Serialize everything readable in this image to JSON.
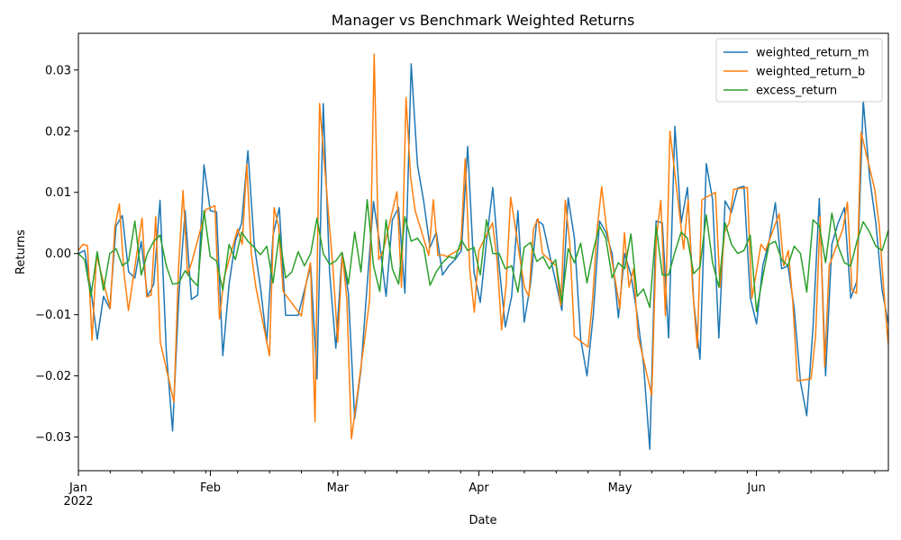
{
  "chart_data": {
    "type": "line",
    "title": "Manager vs Benchmark Weighted Returns",
    "xlabel": "Date",
    "ylabel": "Returns",
    "x_start": "2022-01-03",
    "x_end": "2022-06-30",
    "x_frequency": "business-day",
    "ylim": [
      -0.0355,
      0.036
    ],
    "yticks": [
      -0.03,
      -0.02,
      -0.01,
      0.0,
      0.01,
      0.02,
      0.03
    ],
    "ytick_labels": [
      "−0.03",
      "−0.02",
      "−0.01",
      "0.00",
      "0.01",
      "0.02",
      "0.03"
    ],
    "xticks": [
      {
        "date": "2022-01-03",
        "label": "Jan",
        "sublabel": "2022"
      },
      {
        "date": "2022-02-01",
        "label": "Feb",
        "sublabel": ""
      },
      {
        "date": "2022-03-01",
        "label": "Mar",
        "sublabel": ""
      },
      {
        "date": "2022-04-01",
        "label": "Apr",
        "sublabel": ""
      },
      {
        "date": "2022-05-02",
        "label": "May",
        "sublabel": ""
      },
      {
        "date": "2022-06-01",
        "label": "Jun",
        "sublabel": ""
      }
    ],
    "grid": false,
    "legend_position": "top-right",
    "series": [
      {
        "name": "weighted_return_m",
        "color": "#1f77b4",
        "values": [
          0.0,
          0.0005,
          -0.006,
          -0.014,
          -0.007,
          -0.009,
          0.0045,
          0.0062,
          -0.003,
          -0.004,
          0.002,
          -0.007,
          -0.005,
          0.0087,
          -0.016,
          -0.029,
          -0.007,
          0.007,
          -0.0075,
          -0.0068,
          0.0145,
          0.007,
          0.0068,
          -0.0167,
          -0.005,
          0.002,
          0.005,
          0.0168,
          0.0015,
          -0.0055,
          -0.0145,
          0.003,
          0.0075,
          -0.0101,
          -0.0101,
          -0.0101,
          -0.006,
          -0.002,
          -0.0205,
          0.0245,
          -0.003,
          -0.0155,
          0.0,
          -0.0065,
          -0.027,
          -0.019,
          -0.005,
          0.0085,
          0.0015,
          -0.007,
          0.0055,
          0.0075,
          -0.0065,
          0.031,
          0.0145,
          0.0085,
          0.001,
          0.0035,
          -0.0035,
          -0.002,
          -0.001,
          0.0005,
          0.0175,
          -0.003,
          -0.008,
          0.002,
          0.0108,
          -0.002,
          -0.012,
          -0.007,
          0.007,
          -0.0112,
          -0.005,
          0.0055,
          0.0047,
          0.0,
          -0.0045,
          -0.0093,
          0.0091,
          0.0025,
          -0.014,
          -0.02,
          -0.01,
          0.0053,
          0.0035,
          0.0,
          -0.0105,
          0.0,
          -0.0035,
          -0.01,
          -0.018,
          -0.032,
          0.0053,
          0.005,
          -0.0138,
          0.0208,
          0.005,
          0.0108,
          -0.008,
          -0.0173,
          0.0147,
          0.0088,
          -0.0138,
          0.0086,
          0.0067,
          0.0107,
          0.011,
          -0.0072,
          -0.0115,
          -0.002,
          0.002,
          0.0083,
          -0.0025,
          -0.002,
          -0.009,
          -0.021,
          -0.0265,
          -0.012,
          0.009,
          -0.02,
          0.0015,
          0.005,
          0.0075,
          -0.0073,
          -0.0045,
          0.025,
          0.0125,
          0.005,
          -0.006,
          -0.0115
        ]
      },
      {
        "name": "weighted_return_b",
        "color": "#ff7f0e",
        "values": [
          0.0005,
          0.0015,
          0.0013,
          -0.0142,
          -0.0003,
          -0.009,
          0.0042,
          0.0081,
          -0.003,
          -0.0093,
          0.0058,
          -0.0071,
          -0.0068,
          0.006,
          -0.0145,
          -0.0243,
          -0.0025,
          0.0103,
          -0.0035,
          -0.0012,
          0.0072,
          0.0075,
          0.0078,
          -0.0107,
          -0.004,
          0.004,
          0.0015,
          0.0146,
          0.0,
          -0.0055,
          -0.0167,
          0.0075,
          0.0045,
          -0.0062,
          -0.0072,
          -0.0102,
          -0.005,
          -0.0015,
          -0.0275,
          0.0245,
          -0.003,
          -0.0145,
          0.0,
          -0.0075,
          -0.0303,
          -0.0135,
          -0.0075,
          0.0326,
          -0.001,
          0.0005,
          0.0101,
          -0.0055,
          0.0255,
          0.0125,
          0.007,
          -0.0003,
          0.0088,
          -0.0003,
          -0.0002,
          -0.0005,
          0.0008,
          0.0155,
          -0.0025,
          -0.0096,
          0.0005,
          0.005,
          -0.001,
          -0.0125,
          -0.005,
          0.0092,
          -0.0055,
          -0.007,
          0.004,
          0.0057,
          0.0,
          -0.002,
          -0.0085,
          0.0087,
          0.0015,
          -0.0135,
          -0.0153,
          -0.0075,
          0.004,
          0.0109,
          0.0045,
          -0.009,
          0.0034,
          -0.0055,
          -0.0025,
          -0.0135,
          -0.0232,
          0.0025,
          0.0087,
          -0.0102,
          0.02,
          0.0007,
          0.0088,
          -0.006,
          -0.0155,
          0.0088,
          0.01,
          -0.0055,
          0.0035,
          0.005,
          0.0105,
          0.0108,
          -0.0073,
          -0.003,
          0.0015,
          0.0005,
          0.0065,
          -0.002,
          0.0005,
          -0.008,
          -0.0208,
          -0.0205,
          -0.0135,
          0.006,
          -0.0185,
          -0.002,
          0.004,
          0.0084,
          -0.006,
          -0.0065,
          0.0198,
          0.0105,
          0.0045,
          -0.0062,
          -0.015
        ]
      },
      {
        "name": "excess_return",
        "color": "#2ca02c",
        "values": [
          0.0,
          -0.001,
          -0.007,
          0.0003,
          -0.006,
          0.0,
          0.0008,
          -0.002,
          -0.0012,
          0.0053,
          -0.0035,
          0.0,
          0.002,
          0.003,
          -0.002,
          -0.005,
          -0.0048,
          -0.0028,
          -0.0042,
          -0.0053,
          0.007,
          -0.0005,
          -0.0012,
          -0.006,
          0.0015,
          -0.001,
          0.0035,
          0.002,
          0.001,
          -0.0002,
          0.0012,
          -0.0048,
          0.0032,
          -0.004,
          -0.003,
          0.0003,
          -0.002,
          0.0,
          0.0058,
          0.0,
          -0.0018,
          -0.0012,
          0.0002,
          -0.005,
          0.0035,
          -0.003,
          0.0088,
          -0.002,
          -0.0062,
          0.0055,
          -0.0025,
          -0.005,
          0.006,
          0.002,
          0.0025,
          0.001,
          -0.0052,
          -0.003,
          -0.0015,
          -0.0005,
          -0.0008,
          0.0022,
          0.0005,
          0.001,
          -0.0035,
          0.0055,
          0.0,
          0.0,
          -0.0025,
          -0.002,
          -0.0063,
          0.001,
          0.0018,
          -0.0013,
          -0.0005,
          -0.0025,
          -0.001,
          -0.008,
          0.0008,
          -0.0015,
          0.0017,
          -0.0048,
          0.0005,
          0.0045,
          0.0025,
          -0.004,
          -0.0015,
          -0.0025,
          0.0032,
          -0.007,
          -0.0058,
          -0.0088,
          0.0045,
          -0.0035,
          -0.0035,
          0.0002,
          0.0035,
          0.0025,
          -0.0033,
          -0.0022,
          0.0063,
          -0.0015,
          -0.0055,
          0.005,
          0.0015,
          0.0,
          0.0005,
          0.003,
          -0.0095,
          -0.0038,
          0.0015,
          0.002,
          -0.001,
          -0.002,
          0.0012,
          0.0,
          -0.0063,
          0.0055,
          0.0045,
          -0.0015,
          0.0066,
          0.0012,
          -0.0015,
          -0.002,
          0.002,
          0.0052,
          0.0035,
          0.0012,
          0.0005,
          0.0038
        ]
      }
    ]
  }
}
